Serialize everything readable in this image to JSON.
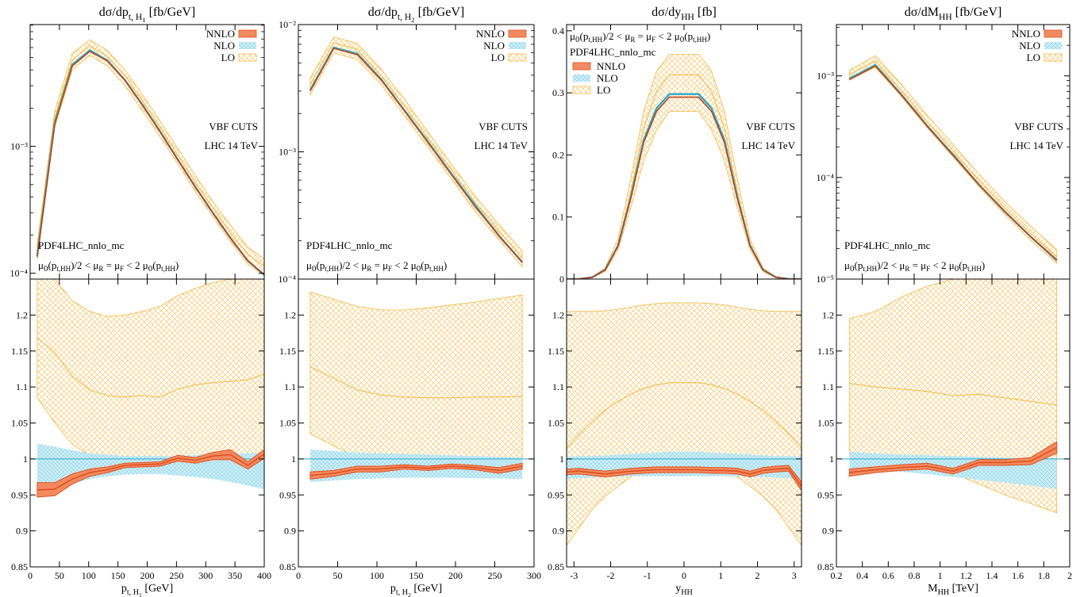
{
  "colors": {
    "nnlo_fill": "#F28A60",
    "nnlo_line": "#E0501E",
    "nlo_fill": "#8FD8EC",
    "nlo_line": "#2AA8C8",
    "lo_fill": "#F8C87A",
    "lo_line": "#F5B840",
    "ratio_one_line": "#2AA8C8"
  },
  "legend": {
    "nnlo": "NNLO",
    "nlo": "NLO",
    "lo": "LO"
  },
  "annotations": {
    "cuts": "VBF CUTS",
    "energy": "LHC 14 TeV",
    "pdf": "PDF4LHC_nnlo_mc",
    "scale_html": "μ<tspan font-size='11' dy='3'>0</tspan><tspan dy='-3'>(p</tspan><tspan font-size='9' dy='3'>t,HH</tspan><tspan dy='-3'>)/2 &lt; μ</tspan><tspan font-size='9' dy='3'>R</tspan><tspan dy='-3'> = μ</tspan><tspan font-size='9' dy='3'>F</tspan><tspan dy='-3'> &lt; 2 μ</tspan><tspan font-size='11' dy='3'>0</tspan><tspan dy='-3'>(p</tspan><tspan font-size='9' dy='3'>t,HH</tspan><tspan dy='-3'>)</tspan>"
  },
  "chart_data": [
    {
      "type": "line",
      "id": "pt1",
      "title_main": "dσ/dp",
      "title_sub": "t, H",
      "title_subsub": "1",
      "title_unit": " [fb/GeV]",
      "xlabel_main": "p",
      "xlabel_sub": "t, H",
      "xlabel_subsub": "1",
      "xlabel_unit": " [GeV]",
      "xlim": [
        0,
        400
      ],
      "xticks": [
        0,
        50,
        100,
        150,
        200,
        250,
        300,
        350,
        400
      ],
      "ylog": true,
      "ylim": [
        9e-05,
        0.0091
      ],
      "yticks": [
        {
          "v": 0.0001,
          "label": "10⁻⁴"
        },
        {
          "v": 0.001,
          "label": "10⁻³"
        }
      ],
      "x": [
        12,
        42,
        72,
        102,
        132,
        162,
        192,
        222,
        252,
        282,
        312,
        342,
        372,
        400
      ],
      "nnlo": [
        0.000135,
        0.0015,
        0.0043,
        0.0056,
        0.0047,
        0.0033,
        0.0021,
        0.0013,
        0.00079,
        0.00048,
        0.0003,
        0.00019,
        0.000125,
        9.75e-05
      ],
      "nlo": [
        0.000138,
        0.00154,
        0.0044,
        0.0057,
        0.00475,
        0.00332,
        0.00212,
        0.00131,
        0.00079,
        0.00048,
        0.0003,
        0.00019,
        0.000125,
        9.73e-05
      ],
      "lo": [
        0.000158,
        0.0017,
        0.0048,
        0.0062,
        0.0051,
        0.0036,
        0.00228,
        0.00141,
        0.00086,
        0.00052,
        0.00033,
        0.00021,
        0.00014,
        0.000114
      ],
      "lo_up": [
        0.00017,
        0.0019,
        0.0054,
        0.0069,
        0.0057,
        0.004,
        0.00255,
        0.00158,
        0.00097,
        0.00059,
        0.00037,
        0.00024,
        0.00016,
        0.00013
      ],
      "lo_dn": [
        0.000128,
        0.00141,
        0.004,
        0.0052,
        0.0043,
        0.003,
        0.0019,
        0.00119,
        0.00073,
        0.00044,
        0.00028,
        0.000178,
        0.000118,
        9.6e-05
      ],
      "legend_style": "top-right",
      "r_nnlo": [
        0.957,
        0.958,
        0.972,
        0.981,
        0.985,
        0.991,
        0.992,
        0.993,
        1.001,
        0.998,
        1.004,
        1.006,
        0.991,
        1.007
      ],
      "r_nnlo_w": [
        0.01,
        0.009,
        0.007,
        0.005,
        0.004,
        0.003,
        0.003,
        0.003,
        0.004,
        0.004,
        0.005,
        0.007,
        0.005,
        0.006
      ],
      "r_nlo_up": [
        1.021,
        1.017,
        1.012,
        1.008,
        1.006,
        1.004,
        1.004,
        1.004,
        1.004,
        1.005,
        1.006,
        1.007,
        1.008,
        1.009
      ],
      "r_nlo_dn": [
        0.948,
        0.958,
        0.966,
        0.972,
        0.976,
        0.978,
        0.979,
        0.979,
        0.977,
        0.975,
        0.972,
        0.968,
        0.963,
        0.958
      ],
      "r_lo": [
        1.168,
        1.148,
        1.115,
        1.096,
        1.088,
        1.086,
        1.088,
        1.086,
        1.097,
        1.103,
        1.106,
        1.108,
        1.11,
        1.118
      ],
      "r_lo_up": [
        1.28,
        1.25,
        1.22,
        1.205,
        1.198,
        1.2,
        1.205,
        1.212,
        1.227,
        1.237,
        1.245,
        1.25,
        1.255,
        1.26
      ],
      "r_lo_dn": [
        1.085,
        1.05,
        1.02,
        1.005,
        0.998,
        0.995,
        0.995,
        0.993,
        0.998,
        1.002,
        1.005,
        1.005,
        1.006,
        1.008
      ]
    },
    {
      "type": "line",
      "id": "pt2",
      "title_main": "dσ/dp",
      "title_sub": "t, H",
      "title_subsub": "2",
      "title_unit": " [fb/GeV]",
      "xlabel_main": "p",
      "xlabel_sub": "t, H",
      "xlabel_subsub": "2",
      "xlabel_unit": " [GeV]",
      "xlim": [
        0,
        300
      ],
      "xticks": [
        0,
        50,
        100,
        150,
        200,
        250,
        300
      ],
      "ylog": true,
      "ylim": [
        0.0001,
        0.01
      ],
      "yticks": [
        {
          "v": 0.0001,
          "label": "10⁻⁴"
        },
        {
          "v": 0.001,
          "label": "10⁻³"
        },
        {
          "v": 0.01,
          "label": "10⁻²"
        }
      ],
      "x": [
        15,
        45,
        75,
        105,
        135,
        165,
        195,
        225,
        255,
        285
      ],
      "nnlo": [
        0.003,
        0.0065,
        0.0058,
        0.0037,
        0.0021,
        0.00118,
        0.00066,
        0.00037,
        0.00022,
        0.000135
      ],
      "nlo": [
        0.00306,
        0.0066,
        0.0059,
        0.00375,
        0.00212,
        0.0012,
        0.00067,
        0.00038,
        0.00022,
        0.000136
      ],
      "lo": [
        0.0034,
        0.0072,
        0.0064,
        0.004,
        0.0023,
        0.00128,
        0.00072,
        0.0004,
        0.00024,
        0.000146
      ],
      "lo_up": [
        0.0038,
        0.008,
        0.0071,
        0.0045,
        0.0026,
        0.00143,
        0.0008,
        0.00045,
        0.00027,
        0.000166
      ],
      "lo_dn": [
        0.0028,
        0.006,
        0.0053,
        0.0034,
        0.00193,
        0.00108,
        0.00061,
        0.00034,
        0.000205,
        0.000125
      ],
      "legend_style": "top-right",
      "r_nnlo": [
        0.977,
        0.98,
        0.986,
        0.986,
        0.989,
        0.987,
        0.99,
        0.988,
        0.984,
        0.99
      ],
      "r_nnlo_w": [
        0.005,
        0.004,
        0.004,
        0.004,
        0.003,
        0.003,
        0.003,
        0.003,
        0.004,
        0.004
      ],
      "r_nlo_up": [
        1.013,
        1.011,
        1.009,
        1.008,
        1.007,
        1.006,
        1.005,
        1.004,
        1.003,
        1.002
      ],
      "r_nlo_dn": [
        0.968,
        0.97,
        0.972,
        0.973,
        0.974,
        0.974,
        0.974,
        0.973,
        0.973,
        0.972
      ],
      "r_lo": [
        1.128,
        1.112,
        1.096,
        1.089,
        1.086,
        1.085,
        1.085,
        1.086,
        1.086,
        1.087
      ],
      "r_lo_up": [
        1.232,
        1.222,
        1.212,
        1.207,
        1.207,
        1.21,
        1.214,
        1.218,
        1.223,
        1.228
      ],
      "r_lo_dn": [
        1.035,
        1.018,
        1.002,
        0.994,
        0.991,
        0.99,
        0.989,
        0.99,
        0.991,
        0.993
      ]
    },
    {
      "type": "line",
      "id": "y",
      "title_main": "dσ/dy",
      "title_sub": "HH",
      "title_subsub": "",
      "title_unit": " [fb]",
      "xlabel_main": "y",
      "xlabel_sub": "HH",
      "xlabel_subsub": "",
      "xlabel_unit": "",
      "xlim": [
        -3.2,
        3.2
      ],
      "xticks": [
        -3,
        -2,
        -1,
        0,
        1,
        2,
        3
      ],
      "ylog": false,
      "ylim": [
        0,
        0.41
      ],
      "yticks": [
        {
          "v": 0,
          "label": "0"
        },
        {
          "v": 0.1,
          "label": "0.1"
        },
        {
          "v": 0.2,
          "label": "0.2"
        },
        {
          "v": 0.3,
          "label": "0.3"
        },
        {
          "v": 0.4,
          "label": "0.4"
        }
      ],
      "x": [
        -3.2,
        -2.85,
        -2.5,
        -2.15,
        -1.8,
        -1.45,
        -1.1,
        -0.75,
        -0.4,
        0.4,
        0.75,
        1.1,
        1.45,
        1.8,
        2.15,
        2.5,
        2.85,
        3.2
      ],
      "nnlo": [
        0,
        0.0003,
        0.003,
        0.015,
        0.053,
        0.13,
        0.22,
        0.27,
        0.293,
        0.293,
        0.27,
        0.22,
        0.13,
        0.053,
        0.015,
        0.003,
        0.0003,
        0
      ],
      "nlo": [
        0,
        0.0003,
        0.003,
        0.015,
        0.054,
        0.132,
        0.224,
        0.275,
        0.298,
        0.298,
        0.275,
        0.224,
        0.132,
        0.054,
        0.015,
        0.003,
        0.0003,
        0
      ],
      "lo": [
        0,
        0.0003,
        0.003,
        0.015,
        0.056,
        0.14,
        0.243,
        0.302,
        0.329,
        0.329,
        0.302,
        0.243,
        0.14,
        0.056,
        0.015,
        0.003,
        0.0003,
        0
      ],
      "lo_up": [
        0,
        0.0003,
        0.004,
        0.018,
        0.065,
        0.162,
        0.27,
        0.335,
        0.362,
        0.362,
        0.335,
        0.27,
        0.162,
        0.065,
        0.018,
        0.004,
        0.0003,
        0
      ],
      "lo_dn": [
        0,
        0.0003,
        0.002,
        0.012,
        0.047,
        0.115,
        0.19,
        0.24,
        0.27,
        0.27,
        0.24,
        0.19,
        0.115,
        0.047,
        0.012,
        0.002,
        0.0003,
        0
      ],
      "legend_style": "top-left",
      "r_nnlo": [
        0.982,
        0.983,
        0.981,
        0.979,
        0.981,
        0.983,
        0.984,
        0.985,
        0.985,
        0.985,
        0.984,
        0.984,
        0.983,
        0.979,
        0.984,
        0.986,
        0.987,
        0.962
      ],
      "r_nnlo_w": [
        0.004,
        0.004,
        0.004,
        0.004,
        0.004,
        0.004,
        0.004,
        0.004,
        0.004,
        0.004,
        0.004,
        0.004,
        0.004,
        0.004,
        0.004,
        0.004,
        0.004,
        0.006
      ],
      "r_nlo_up": [
        1.003,
        1.004,
        1.004,
        1.005,
        1.006,
        1.007,
        1.008,
        1.009,
        1.01,
        1.01,
        1.009,
        1.008,
        1.007,
        1.006,
        1.005,
        1.004,
        1.004,
        1.003
      ],
      "r_nlo_dn": [
        0.972,
        0.973,
        0.974,
        0.975,
        0.975,
        0.976,
        0.976,
        0.976,
        0.976,
        0.976,
        0.976,
        0.976,
        0.976,
        0.975,
        0.975,
        0.974,
        0.973,
        0.972
      ],
      "r_lo": [
        1.015,
        1.035,
        1.052,
        1.068,
        1.08,
        1.09,
        1.098,
        1.103,
        1.106,
        1.106,
        1.103,
        1.098,
        1.09,
        1.08,
        1.068,
        1.052,
        1.035,
        1.015
      ],
      "r_lo_up": [
        1.205,
        1.205,
        1.205,
        1.206,
        1.208,
        1.211,
        1.214,
        1.216,
        1.217,
        1.217,
        1.216,
        1.214,
        1.211,
        1.208,
        1.206,
        1.205,
        1.205,
        1.205
      ],
      "r_lo_dn": [
        0.88,
        0.905,
        0.93,
        0.948,
        0.962,
        0.975,
        0.984,
        0.99,
        0.993,
        0.993,
        0.99,
        0.984,
        0.975,
        0.962,
        0.948,
        0.93,
        0.905,
        0.88
      ]
    },
    {
      "type": "line",
      "id": "mhh",
      "title_main": "dσ/dM",
      "title_sub": "HH",
      "title_subsub": "",
      "title_unit": " [fb/GeV]",
      "xlabel_main": "M",
      "xlabel_sub": "HH",
      "xlabel_subsub": "",
      "xlabel_unit": " [TeV]",
      "xlim": [
        0.2,
        2.0
      ],
      "xticks": [
        0.2,
        0.4,
        0.6,
        0.8,
        1.0,
        1.2,
        1.4,
        1.6,
        1.8,
        2.0
      ],
      "xticklabels": [
        "0.2",
        "0.4",
        "0.6",
        "0.8",
        "1",
        "1.2",
        "1.4",
        "1.6",
        "1.8",
        "2"
      ],
      "ylog": true,
      "ylim": [
        1e-05,
        0.0032
      ],
      "yticks": [
        {
          "v": 1e-05,
          "label": "10⁻⁵"
        },
        {
          "v": 0.0001,
          "label": "10⁻⁴"
        },
        {
          "v": 0.001,
          "label": "10⁻³"
        }
      ],
      "x": [
        0.3,
        0.5,
        0.7,
        0.9,
        1.1,
        1.3,
        1.5,
        1.7,
        1.9
      ],
      "nnlo": [
        0.00092,
        0.00125,
        0.00065,
        0.00032,
        0.000165,
        8.5e-05,
        4.6e-05,
        2.6e-05,
        1.55e-05
      ],
      "nlo": [
        0.00094,
        0.00128,
        0.00066,
        0.000323,
        0.000168,
        8.5e-05,
        4.6e-05,
        2.6e-05,
        1.53e-05
      ],
      "lo": [
        0.00103,
        0.0014,
        0.00072,
        0.000352,
        0.000183,
        9.3e-05,
        5e-05,
        2.8e-05,
        1.65e-05
      ],
      "lo_up": [
        0.00113,
        0.00158,
        0.00083,
        0.00041,
        0.000212,
        0.000108,
        5.8e-05,
        3.3e-05,
        1.95e-05
      ],
      "lo_dn": [
        0.00091,
        0.00122,
        0.00063,
        0.00031,
        0.00016,
        8.1e-05,
        4.3e-05,
        2.4e-05,
        1.43e-05
      ],
      "legend_style": "top-right",
      "r_nnlo": [
        0.981,
        0.985,
        0.988,
        0.99,
        0.983,
        0.995,
        0.995,
        0.997,
        1.016
      ],
      "r_nnlo_w": [
        0.005,
        0.004,
        0.004,
        0.004,
        0.004,
        0.004,
        0.004,
        0.005,
        0.008
      ],
      "r_nlo_up": [
        1.01,
        1.008,
        1.006,
        1.005,
        1.004,
        1.003,
        1.002,
        1.001,
        1.001
      ],
      "r_nlo_dn": [
        0.985,
        0.984,
        0.982,
        0.979,
        0.975,
        0.971,
        0.967,
        0.963,
        0.958
      ],
      "r_lo": [
        1.105,
        1.1,
        1.097,
        1.094,
        1.088,
        1.09,
        1.085,
        1.08,
        1.075
      ],
      "r_lo_up": [
        1.195,
        1.205,
        1.225,
        1.24,
        1.25,
        1.26,
        1.265,
        1.27,
        1.275
      ],
      "r_lo_dn": [
        1.005,
        0.998,
        0.994,
        0.99,
        0.98,
        0.965,
        0.95,
        0.938,
        0.925
      ]
    }
  ],
  "ratio_axis": {
    "ylim": [
      0.85,
      1.25
    ],
    "yticks": [
      0.85,
      0.9,
      0.95,
      1,
      1.05,
      1.1,
      1.15,
      1.2
    ],
    "yticklabels": [
      "0.85",
      "0.9",
      "0.95",
      "1",
      "1.05",
      "1.1",
      "1.15",
      "1.2"
    ]
  }
}
